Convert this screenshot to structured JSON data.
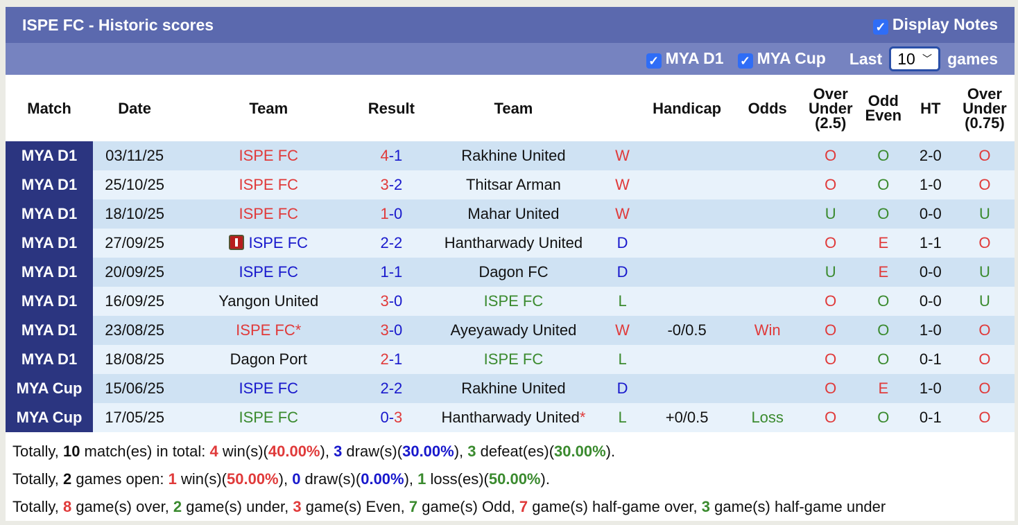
{
  "header": {
    "title": "ISPE FC - Historic scores",
    "display_notes": "Display Notes"
  },
  "filters": {
    "league1": "MYA D1",
    "league2": "MYA Cup",
    "last_label": "Last",
    "last_value": "10",
    "games_label": "games"
  },
  "columns": [
    "Match",
    "Date",
    "Team",
    "Result",
    "Team",
    "",
    "Handicap",
    "Odds",
    "Over Under (2.5)",
    "Odd Even",
    "HT",
    "Over Under (0.75)"
  ],
  "colors": {
    "header": "#5b69ae",
    "subheader": "#7683c0",
    "match_cell": "#2b3580",
    "red": "#e03a3a",
    "blue": "#1818cc",
    "green": "#3a8a2e"
  },
  "rows": [
    {
      "match": "MYA D1",
      "date": "03/11/25",
      "home": "ISPE FC",
      "hc": "red",
      "s1": "4",
      "s2": "1",
      "c1": "red",
      "c2": "blue",
      "away": "Rakhine United",
      "ac": "",
      "wl": "W",
      "wlc": "red",
      "hcp": "",
      "odds": "",
      "oddsc": "",
      "ou": "O",
      "ouc": "red",
      "oe": "O",
      "oec": "green",
      "ht": "2-0",
      "ou2": "O",
      "ou2c": "red"
    },
    {
      "match": "MYA D1",
      "date": "25/10/25",
      "home": "ISPE FC",
      "hc": "red",
      "s1": "3",
      "s2": "2",
      "c1": "red",
      "c2": "blue",
      "away": "Thitsar Arman",
      "ac": "",
      "wl": "W",
      "wlc": "red",
      "hcp": "",
      "odds": "",
      "oddsc": "",
      "ou": "O",
      "ouc": "red",
      "oe": "O",
      "oec": "green",
      "ht": "1-0",
      "ou2": "O",
      "ou2c": "red"
    },
    {
      "match": "MYA D1",
      "date": "18/10/25",
      "home": "ISPE FC",
      "hc": "red",
      "s1": "1",
      "s2": "0",
      "c1": "red",
      "c2": "blue",
      "away": "Mahar United",
      "ac": "",
      "wl": "W",
      "wlc": "red",
      "hcp": "",
      "odds": "",
      "oddsc": "",
      "ou": "U",
      "ouc": "green",
      "oe": "O",
      "oec": "green",
      "ht": "0-0",
      "ou2": "U",
      "ou2c": "green"
    },
    {
      "match": "MYA D1",
      "date": "27/09/25",
      "home": "ISPE FC",
      "hc": "blue",
      "flag": true,
      "s1": "2",
      "s2": "2",
      "c1": "blue",
      "c2": "blue",
      "away": "Hantharwady United",
      "ac": "",
      "wl": "D",
      "wlc": "blue",
      "hcp": "",
      "odds": "",
      "oddsc": "",
      "ou": "O",
      "ouc": "red",
      "oe": "E",
      "oec": "red",
      "ht": "1-1",
      "ou2": "O",
      "ou2c": "red"
    },
    {
      "match": "MYA D1",
      "date": "20/09/25",
      "home": "ISPE FC",
      "hc": "blue",
      "s1": "1",
      "s2": "1",
      "c1": "blue",
      "c2": "blue",
      "away": "Dagon FC",
      "ac": "",
      "wl": "D",
      "wlc": "blue",
      "hcp": "",
      "odds": "",
      "oddsc": "",
      "ou": "U",
      "ouc": "green",
      "oe": "E",
      "oec": "red",
      "ht": "0-0",
      "ou2": "U",
      "ou2c": "green"
    },
    {
      "match": "MYA D1",
      "date": "16/09/25",
      "home": "Yangon United",
      "hc": "",
      "s1": "3",
      "s2": "0",
      "c1": "red",
      "c2": "blue",
      "away": "ISPE FC",
      "ac": "green",
      "wl": "L",
      "wlc": "green",
      "hcp": "",
      "odds": "",
      "oddsc": "",
      "ou": "O",
      "ouc": "red",
      "oe": "O",
      "oec": "green",
      "ht": "0-0",
      "ou2": "U",
      "ou2c": "green"
    },
    {
      "match": "MYA D1",
      "date": "23/08/25",
      "home": "ISPE FC*",
      "hc": "red",
      "s1": "3",
      "s2": "0",
      "c1": "red",
      "c2": "blue",
      "away": "Ayeyawady United",
      "ac": "",
      "wl": "W",
      "wlc": "red",
      "hcp": "-0/0.5",
      "odds": "Win",
      "oddsc": "red",
      "ou": "O",
      "ouc": "red",
      "oe": "O",
      "oec": "green",
      "ht": "1-0",
      "ou2": "O",
      "ou2c": "red"
    },
    {
      "match": "MYA D1",
      "date": "18/08/25",
      "home": "Dagon Port",
      "hc": "",
      "s1": "2",
      "s2": "1",
      "c1": "red",
      "c2": "blue",
      "away": "ISPE FC",
      "ac": "green",
      "wl": "L",
      "wlc": "green",
      "hcp": "",
      "odds": "",
      "oddsc": "",
      "ou": "O",
      "ouc": "red",
      "oe": "O",
      "oec": "green",
      "ht": "0-1",
      "ou2": "O",
      "ou2c": "red"
    },
    {
      "match": "MYA Cup",
      "date": "15/06/25",
      "home": "ISPE FC",
      "hc": "blue",
      "s1": "2",
      "s2": "2",
      "c1": "blue",
      "c2": "blue",
      "away": "Rakhine United",
      "ac": "",
      "wl": "D",
      "wlc": "blue",
      "hcp": "",
      "odds": "",
      "oddsc": "",
      "ou": "O",
      "ouc": "red",
      "oe": "E",
      "oec": "red",
      "ht": "1-0",
      "ou2": "O",
      "ou2c": "red"
    },
    {
      "match": "MYA Cup",
      "date": "17/05/25",
      "home": "ISPE FC",
      "hc": "green",
      "s1": "0",
      "s2": "3",
      "c1": "blue",
      "c2": "red",
      "away": "Hantharwady United",
      "astar": "*",
      "ac": "",
      "wl": "L",
      "wlc": "green",
      "hcp": "+0/0.5",
      "odds": "Loss",
      "oddsc": "green",
      "ou": "O",
      "ouc": "red",
      "oe": "O",
      "oec": "green",
      "ht": "0-1",
      "ou2": "O",
      "ou2c": "red"
    }
  ],
  "summary": [
    [
      [
        "Totally, ",
        ""
      ],
      [
        "10",
        "b"
      ],
      [
        " match(es) in total: ",
        ""
      ],
      [
        "4",
        "red"
      ],
      [
        " win(s)(",
        ""
      ],
      [
        "40.00%",
        "red"
      ],
      [
        "), ",
        ""
      ],
      [
        "3",
        "blue"
      ],
      [
        " draw(s)(",
        ""
      ],
      [
        "30.00%",
        "blue"
      ],
      [
        "), ",
        ""
      ],
      [
        "3",
        "green"
      ],
      [
        " defeat(es)(",
        ""
      ],
      [
        "30.00%",
        "green"
      ],
      [
        ").",
        ""
      ]
    ],
    [
      [
        "Totally, ",
        ""
      ],
      [
        "2",
        "b"
      ],
      [
        " games open: ",
        ""
      ],
      [
        "1",
        "red"
      ],
      [
        " win(s)(",
        ""
      ],
      [
        "50.00%",
        "red"
      ],
      [
        "), ",
        ""
      ],
      [
        "0",
        "blue"
      ],
      [
        " draw(s)(",
        ""
      ],
      [
        "0.00%",
        "blue"
      ],
      [
        "), ",
        ""
      ],
      [
        "1",
        "green"
      ],
      [
        " loss(es)(",
        ""
      ],
      [
        "50.00%",
        "green"
      ],
      [
        ").",
        ""
      ]
    ],
    [
      [
        "Totally, ",
        ""
      ],
      [
        "8",
        "red"
      ],
      [
        " game(s) over, ",
        ""
      ],
      [
        "2",
        "green"
      ],
      [
        " game(s) under, ",
        ""
      ],
      [
        "3",
        "red"
      ],
      [
        " game(s) Even, ",
        ""
      ],
      [
        "7",
        "green"
      ],
      [
        " game(s) Odd, ",
        ""
      ],
      [
        "7",
        "red"
      ],
      [
        " game(s) half-game over, ",
        ""
      ],
      [
        "3",
        "green"
      ],
      [
        " game(s) half-game under",
        ""
      ]
    ]
  ]
}
